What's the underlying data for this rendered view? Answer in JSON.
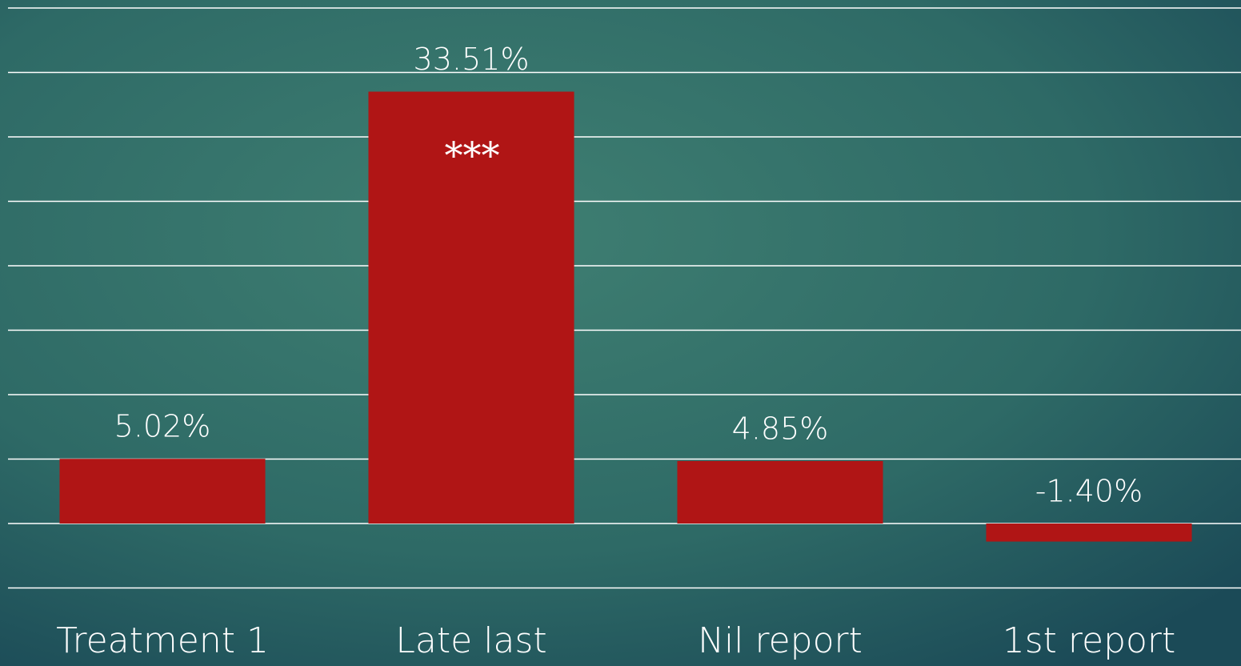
{
  "chart_data": {
    "type": "bar",
    "categories": [
      "Treatment 1",
      "Late last",
      "Nil report",
      "1st report"
    ],
    "values": [
      5.02,
      33.51,
      4.85,
      -1.4
    ],
    "value_labels": [
      "5.02%",
      "33.51%",
      "4.85%",
      "-1.40%"
    ],
    "annotation": "***",
    "color": "#b01515",
    "ylim": [
      -5,
      40
    ],
    "yticks": [
      -5,
      0,
      5,
      10,
      15,
      20,
      25,
      30,
      35,
      40
    ],
    "grid": true
  }
}
